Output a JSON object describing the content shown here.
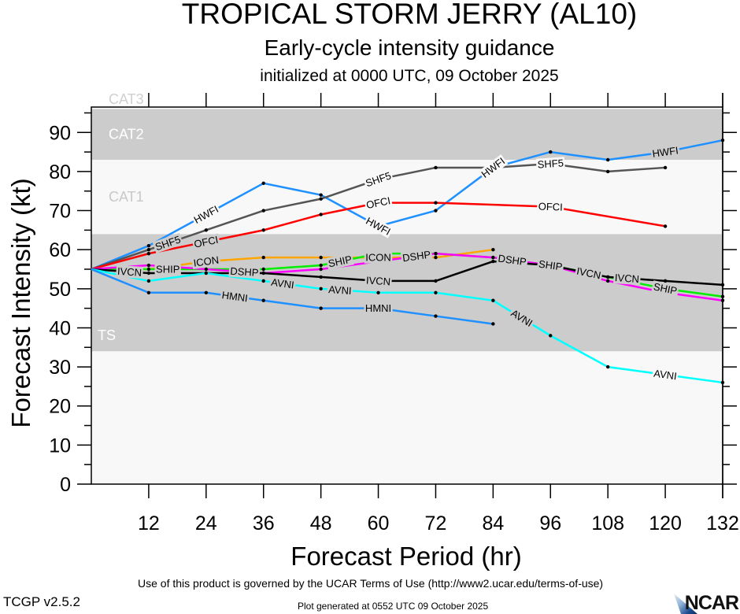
{
  "header": {
    "title": "TROPICAL STORM JERRY (AL10)",
    "subtitle": "Early-cycle intensity guidance",
    "init": "initialized at 0000 UTC, 09 October 2025"
  },
  "footer": {
    "terms": "Use of this product is governed by the UCAR Terms of Use (http://www2.ucar.edu/terms-of-use)",
    "generated": "Plot generated at 0552 UTC   09 October 2025",
    "version": "TCGP v2.5.2",
    "logo": "NCAR"
  },
  "chart_data": {
    "type": "line",
    "title": "TROPICAL STORM JERRY (AL10)",
    "xlabel": "Forecast Period (hr)",
    "ylabel": "Forecast Intensity (kt)",
    "xlim": [
      0,
      132
    ],
    "ylim": [
      0,
      96.5
    ],
    "xticks": [
      12,
      24,
      36,
      48,
      60,
      72,
      84,
      96,
      108,
      120,
      132
    ],
    "yticks": [
      0,
      10,
      20,
      30,
      40,
      50,
      60,
      70,
      80,
      90
    ],
    "bands": [
      {
        "name": "TS",
        "from": 34,
        "to": 64,
        "color": "#cccccc",
        "label_color": "#ffffff"
      },
      {
        "name": "CAT1",
        "from": 64,
        "to": 83,
        "color": "#f8f8f8",
        "label_color": "#c8c8c8"
      },
      {
        "name": "CAT2",
        "from": 83,
        "to": 96,
        "color": "#cccccc",
        "label_color": "#ffffff"
      },
      {
        "name": "CAT3",
        "from": 96,
        "to": 113,
        "color": "#f8f8f8",
        "label_color": "#d0d0d0"
      }
    ],
    "series": [
      {
        "name": "HWFI",
        "color": "#1e90ff",
        "x": [
          0,
          12,
          24,
          36,
          48,
          60,
          72,
          84,
          96,
          108,
          120,
          132
        ],
        "values": [
          55,
          61,
          69,
          77,
          74,
          66,
          70,
          81,
          85,
          83,
          85,
          88
        ],
        "labels": [
          [
            24,
            69
          ],
          [
            60,
            68
          ],
          [
            84,
            81
          ],
          [
            120,
            85
          ]
        ]
      },
      {
        "name": "SHF5",
        "color": "#555555",
        "x": [
          0,
          12,
          24,
          36,
          48,
          60,
          72,
          84,
          96,
          108,
          120
        ],
        "values": [
          55,
          60,
          65,
          70,
          73,
          78,
          81,
          81,
          82,
          80,
          81
        ],
        "labels": [
          [
            24,
            65
          ],
          [
            60,
            78
          ],
          [
            96,
            82
          ]
        ]
      },
      {
        "name": "OFCI",
        "color": "#ff0000",
        "x": [
          0,
          12,
          24,
          36,
          48,
          60,
          72,
          96,
          120
        ],
        "values": [
          55,
          59,
          62,
          65,
          69,
          72,
          72,
          71,
          66
        ],
        "labels": [
          [
            24,
            62
          ],
          [
            60,
            72
          ],
          [
            96,
            71
          ]
        ]
      },
      {
        "name": "ICON",
        "color": "#ffa500",
        "x": [
          0,
          12,
          24,
          36,
          48,
          60,
          72,
          84
        ],
        "values": [
          55,
          55,
          57,
          58,
          58,
          58,
          58,
          60
        ],
        "labels": [
          [
            24,
            57.5
          ],
          [
            60,
            57
          ]
        ]
      },
      {
        "name": "SHIP",
        "color": "#00ee00",
        "x": [
          0,
          12,
          24,
          36,
          48,
          60,
          72,
          84,
          96,
          108,
          120,
          132
        ],
        "values": [
          55,
          55,
          55,
          55,
          56,
          59,
          59,
          58,
          56,
          53,
          50,
          48
        ],
        "labels": [
          [
            24,
            55
          ],
          [
            60,
            59
          ],
          [
            96,
            56
          ],
          [
            120,
            49.5
          ]
        ]
      },
      {
        "name": "DSHP",
        "color": "#ff00ff",
        "x": [
          0,
          12,
          24,
          36,
          48,
          60,
          72,
          84,
          96,
          108,
          120,
          132
        ],
        "values": [
          55,
          56,
          55,
          54,
          55,
          57,
          59,
          58,
          56,
          52,
          49,
          47
        ],
        "labels": [
          [
            24,
            54.5
          ],
          [
            60,
            58
          ],
          [
            96,
            55.5
          ]
        ]
      },
      {
        "name": "IVCN",
        "color": "#000000",
        "x": [
          0,
          12,
          24,
          36,
          48,
          60,
          72,
          84,
          96,
          108,
          120,
          132
        ],
        "values": [
          55,
          54,
          54,
          54,
          53,
          52,
          52,
          57,
          56,
          53,
          52,
          51
        ],
        "labels": [
          [
            24,
            54
          ],
          [
            60,
            52
          ],
          [
            96,
            56
          ],
          [
            120,
            52
          ]
        ]
      },
      {
        "name": "AVNI",
        "color": "#00ffff",
        "x": [
          0,
          12,
          24,
          36,
          48,
          60,
          72,
          84,
          96,
          108,
          120,
          132
        ],
        "values": [
          55,
          52,
          54,
          52,
          50,
          49,
          49,
          47,
          38,
          30,
          28,
          26
        ],
        "labels": [
          [
            24,
            54
          ],
          [
            60,
            49
          ],
          [
            90,
            41
          ],
          [
            120,
            28
          ]
        ]
      },
      {
        "name": "HMNI",
        "color": "#1e90ff",
        "x": [
          0,
          12,
          24,
          36,
          48,
          60,
          72,
          84
        ],
        "values": [
          55,
          49,
          49,
          47,
          45,
          45,
          43,
          41
        ],
        "labels": [
          [
            30,
            48
          ],
          [
            60,
            45
          ]
        ]
      }
    ]
  }
}
